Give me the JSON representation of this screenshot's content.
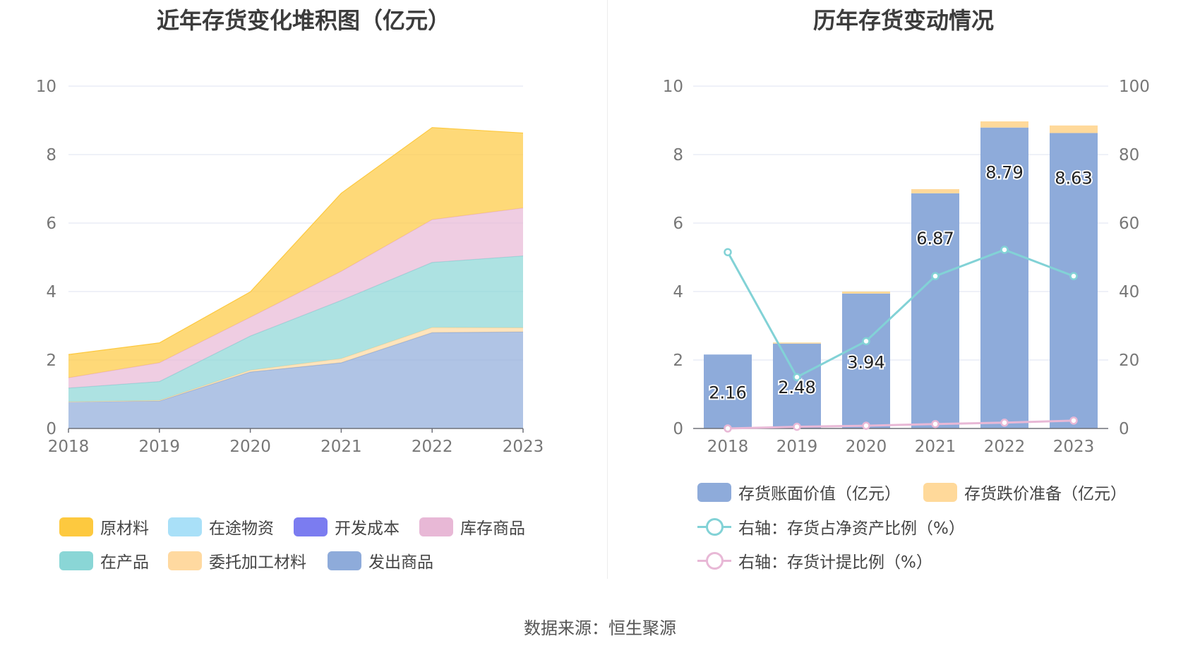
{
  "titles": {
    "left": "近年存货变化堆积图（亿元）",
    "right": "历年存货变动情况"
  },
  "source": "数据来源：恒生聚源",
  "colors": {
    "raw_material": "#fdc93f",
    "in_transit": "#a9e0f8",
    "dev_cost": "#7b7cf0",
    "stock_goods": "#e8b8d6",
    "wip": "#8ad6d6",
    "consigned": "#ffd9a0",
    "shipped": "#8eabda",
    "bar_book": "#8eabda",
    "bar_reserve": "#ffd99a",
    "line_ratio": "#82d2d6",
    "line_provision": "#e8b8d6",
    "grid": "#dfe3f2",
    "axis_text": "#777777"
  },
  "chart_data": [
    {
      "type": "area",
      "stacked": true,
      "title": "近年存货变化堆积图（亿元）",
      "x": [
        "2018",
        "2019",
        "2020",
        "2021",
        "2022",
        "2023"
      ],
      "ylim": [
        0,
        10
      ],
      "yticks": [
        "0",
        "2",
        "4",
        "6",
        "8",
        "10"
      ],
      "grid": true,
      "legend_position": "bottom",
      "series": [
        {
          "name": "发出商品",
          "key": "shipped",
          "values": [
            0.78,
            0.8,
            1.65,
            1.92,
            2.8,
            2.82
          ]
        },
        {
          "name": "委托加工材料",
          "key": "consigned",
          "values": [
            0.0,
            0.02,
            0.05,
            0.12,
            0.15,
            0.12
          ]
        },
        {
          "name": "在产品",
          "key": "wip",
          "values": [
            0.4,
            0.55,
            1.0,
            1.7,
            1.9,
            2.1
          ]
        },
        {
          "name": "库存商品",
          "key": "stock_goods",
          "values": [
            0.3,
            0.55,
            0.55,
            0.85,
            1.25,
            1.4
          ]
        },
        {
          "name": "开发成本",
          "key": "dev_cost",
          "values": [
            0.0,
            0.0,
            0.0,
            0.0,
            0.0,
            0.0
          ]
        },
        {
          "name": "在途物资",
          "key": "in_transit",
          "values": [
            0.0,
            0.0,
            0.0,
            0.0,
            0.0,
            0.0
          ]
        },
        {
          "name": "原材料",
          "key": "raw_material",
          "values": [
            0.68,
            0.58,
            0.74,
            2.28,
            2.69,
            2.19
          ]
        }
      ],
      "legend_order": [
        "原材料",
        "在途物资",
        "开发成本",
        "库存商品",
        "在产品",
        "委托加工材料",
        "发出商品"
      ]
    },
    {
      "type": "bar",
      "stacked": true,
      "title": "历年存货变动情况",
      "categories": [
        "2018",
        "2019",
        "2020",
        "2021",
        "2022",
        "2023"
      ],
      "ylim": [
        0,
        10
      ],
      "yticks": [
        "0",
        "2",
        "4",
        "6",
        "8",
        "10"
      ],
      "y2lim": [
        0,
        100
      ],
      "y2ticks": [
        "0",
        "20",
        "40",
        "60",
        "80",
        "100"
      ],
      "grid": true,
      "legend_position": "bottom",
      "series": [
        {
          "name": "存货账面价值（亿元）",
          "key": "bar_book",
          "type": "bar",
          "values": [
            2.16,
            2.48,
            3.94,
            6.87,
            8.79,
            8.63
          ],
          "labels": [
            "2.16",
            "2.48",
            "3.94",
            "6.87",
            "8.79",
            "8.63"
          ]
        },
        {
          "name": "存货跌价准备（亿元）",
          "key": "bar_reserve",
          "type": "bar",
          "values": [
            0.0,
            0.03,
            0.06,
            0.12,
            0.18,
            0.22
          ]
        },
        {
          "name": "右轴：存货占净资产比例（%）",
          "key": "line_ratio",
          "type": "line",
          "axis": "right",
          "values": [
            51.5,
            15.0,
            25.5,
            44.5,
            52.2,
            44.5
          ]
        },
        {
          "name": "右轴：存货计提比例（%）",
          "key": "line_provision",
          "type": "line",
          "axis": "right",
          "values": [
            0.0,
            0.5,
            0.8,
            1.3,
            1.7,
            2.3
          ]
        }
      ]
    }
  ]
}
